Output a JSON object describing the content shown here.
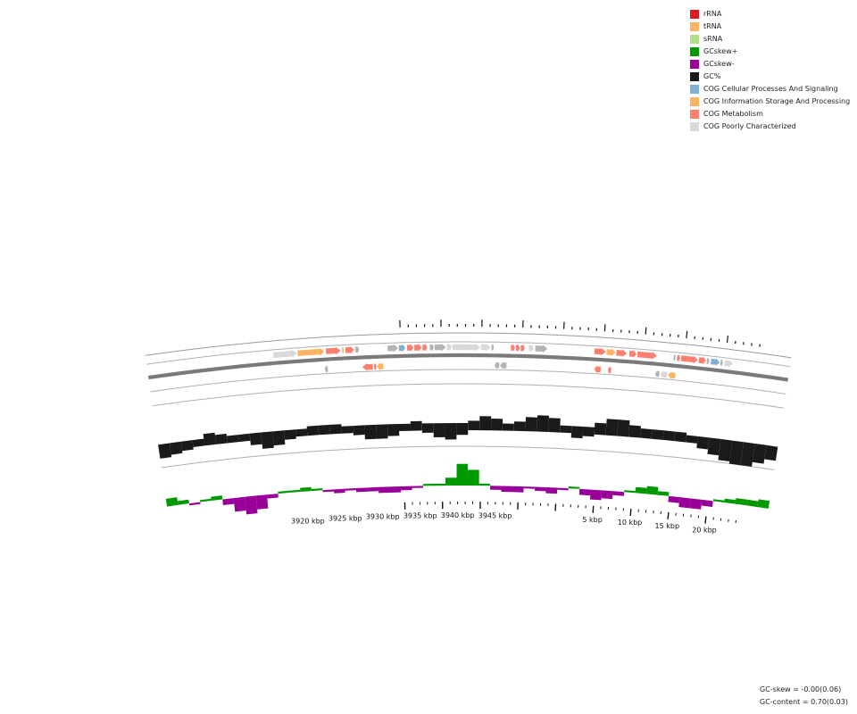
{
  "legend": [
    {
      "label": "rRNA",
      "color": "#e31a1c"
    },
    {
      "label": "tRNA",
      "color": "#fdb462"
    },
    {
      "label": "sRNA",
      "color": "#b2df8a"
    },
    {
      "label": "GCskew+",
      "color": "#009900"
    },
    {
      "label": "GCskew-",
      "color": "#990099"
    },
    {
      "label": "GC%",
      "color": "#1a1a1a"
    },
    {
      "label": "COG Cellular Processes And Signaling",
      "color": "#80b1d3"
    },
    {
      "label": "COG Information Storage And Processing",
      "color": "#fdb462"
    },
    {
      "label": "COG Metabolism",
      "color": "#fb8072"
    },
    {
      "label": "COG Poorly Characterized",
      "color": "#d9d9d9"
    }
  ],
  "axis": {
    "ticks": [
      {
        "label": "3920 kbp",
        "kbp": 3920
      },
      {
        "label": "3925 kbp",
        "kbp": 3925
      },
      {
        "label": "3930 kbp",
        "kbp": 3930
      },
      {
        "label": "3935 kbp",
        "kbp": 3935
      },
      {
        "label": "3940 kbp",
        "kbp": 3940
      },
      {
        "label": "3945 kbp",
        "kbp": 3945
      },
      {
        "label": "5 kbp",
        "kbp": 5
      },
      {
        "label": "10 kbp",
        "kbp": 10
      },
      {
        "label": "15 kbp",
        "kbp": 15
      },
      {
        "label": "20 kbp",
        "kbp": 20
      }
    ]
  },
  "features": {
    "forward": [
      {
        "start": 3917.3,
        "end": 3920.2,
        "cat": "poorly"
      },
      {
        "start": 3920.3,
        "end": 3923.6,
        "cat": "info"
      },
      {
        "start": 3923.8,
        "end": 3925.6,
        "cat": "metab"
      },
      {
        "start": 3925.8,
        "end": 3926.0,
        "cat": "info"
      },
      {
        "start": 3926.2,
        "end": 3927.3,
        "cat": "metab"
      },
      {
        "start": 3927.4,
        "end": 3927.9,
        "cat": "grey"
      },
      {
        "start": 3931.4,
        "end": 3932.7,
        "cat": "grey"
      },
      {
        "start": 3932.8,
        "end": 3933.6,
        "cat": "cell"
      },
      {
        "start": 3933.8,
        "end": 3934.6,
        "cat": "metab"
      },
      {
        "start": 3934.7,
        "end": 3935.6,
        "cat": "metab"
      },
      {
        "start": 3935.7,
        "end": 3936.3,
        "cat": "metab"
      },
      {
        "start": 3936.6,
        "end": 3937.1,
        "cat": "grey"
      },
      {
        "start": 3937.2,
        "end": 3938.6,
        "cat": "grey"
      },
      {
        "start": 3938.7,
        "end": 3939.3,
        "cat": "poorly"
      },
      {
        "start": 3939.4,
        "end": 3942.8,
        "cat": "poorly"
      },
      {
        "start": 3942.9,
        "end": 3944.1,
        "cat": "poorly"
      },
      {
        "start": 3944.2,
        "end": 3944.5,
        "cat": "grey"
      },
      {
        "start": 3946.6,
        "end": 3947.1,
        "cat": "metab"
      },
      {
        "start": 3947.2,
        "end": 3947.7,
        "cat": "metab"
      },
      {
        "start": 3947.8,
        "end": 3948.3,
        "cat": "metab"
      },
      {
        "start": 3948.8,
        "end": 3949.4,
        "cat": "poorly"
      },
      {
        "start": 3949.6,
        "end": 3951.1,
        "cat": "grey"
      },
      {
        "start": 3.9,
        "end": 5.3,
        "cat": "metab"
      },
      {
        "start": 5.4,
        "end": 6.5,
        "cat": "info"
      },
      {
        "start": 6.6,
        "end": 7.9,
        "cat": "metab"
      },
      {
        "start": 8.2,
        "end": 9.1,
        "cat": "metab"
      },
      {
        "start": 9.2,
        "end": 11.6,
        "cat": "metab"
      },
      {
        "start": 13.7,
        "end": 13.9,
        "cat": "cell"
      },
      {
        "start": 14.1,
        "end": 14.5,
        "cat": "metab"
      },
      {
        "start": 14.6,
        "end": 16.7,
        "cat": "metab"
      },
      {
        "start": 16.8,
        "end": 17.7,
        "cat": "metab"
      },
      {
        "start": 17.8,
        "end": 18.1,
        "cat": "grey"
      },
      {
        "start": 18.3,
        "end": 19.4,
        "cat": "cell"
      },
      {
        "start": 19.5,
        "end": 19.8,
        "cat": "grey"
      },
      {
        "start": 20.0,
        "end": 21.0,
        "cat": "poorly"
      }
    ],
    "reverse": [
      {
        "start": 3923.5,
        "end": 3923.9,
        "cat": "grey"
      },
      {
        "start": 3928.2,
        "end": 3929.5,
        "cat": "metab"
      },
      {
        "start": 3929.6,
        "end": 3929.9,
        "cat": "metab"
      },
      {
        "start": 3930.0,
        "end": 3930.8,
        "cat": "info"
      },
      {
        "start": 3944.6,
        "end": 3945.2,
        "cat": "grey"
      },
      {
        "start": 3945.3,
        "end": 3946.1,
        "cat": "grey"
      },
      {
        "start": 4.0,
        "end": 4.8,
        "cat": "metab"
      },
      {
        "start": 5.7,
        "end": 6.1,
        "cat": "metab"
      },
      {
        "start": 11.6,
        "end": 12.1,
        "cat": "grey"
      },
      {
        "start": 12.2,
        "end": 13.1,
        "cat": "poorly"
      },
      {
        "start": 13.2,
        "end": 14.1,
        "cat": "info"
      }
    ]
  },
  "gc_content": [
    0.67,
    0.68,
    0.69,
    0.7,
    0.72,
    0.71,
    0.7,
    0.7,
    0.68,
    0.66,
    0.67,
    0.69,
    0.7,
    0.71,
    0.71,
    0.71,
    0.7,
    0.69,
    0.67,
    0.67,
    0.68,
    0.7,
    0.71,
    0.69,
    0.67,
    0.66,
    0.68,
    0.71,
    0.73,
    0.72,
    0.7,
    0.71,
    0.73,
    0.74,
    0.73,
    0.7,
    0.68,
    0.69,
    0.72,
    0.74,
    0.74,
    0.72,
    0.71,
    0.71,
    0.71,
    0.71,
    0.7,
    0.68,
    0.66,
    0.64,
    0.63,
    0.63,
    0.65,
    0.67
  ],
  "gc_skew": [
    0.04,
    0.02,
    -0.01,
    0.01,
    0.02,
    -0.03,
    -0.07,
    -0.09,
    -0.07,
    -0.02,
    0.01,
    0.01,
    0.02,
    0.01,
    -0.01,
    -0.02,
    -0.01,
    -0.02,
    -0.02,
    -0.03,
    -0.03,
    -0.02,
    -0.01,
    0.01,
    0.01,
    0.04,
    0.11,
    0.08,
    0.01,
    -0.02,
    -0.03,
    -0.03,
    -0.01,
    -0.02,
    -0.03,
    -0.01,
    0.01,
    -0.03,
    -0.05,
    -0.04,
    -0.02,
    0.01,
    0.03,
    0.04,
    0.02,
    -0.03,
    -0.05,
    -0.05,
    -0.03,
    0.01,
    0.02,
    0.03,
    0.03,
    0.04
  ],
  "stats": {
    "gc_skew": "GC-skew = -0.00(0.06)",
    "gc_content": "GC-content = 0.70(0.03)"
  }
}
